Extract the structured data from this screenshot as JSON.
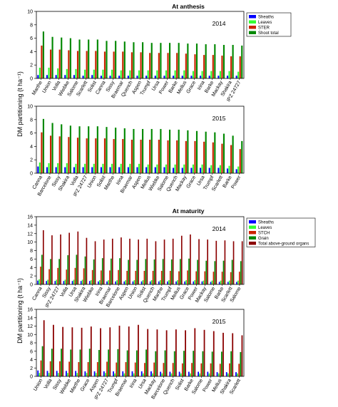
{
  "figure": {
    "section_titles": [
      "At anthesis",
      "At maturity"
    ],
    "ylabel": "DM partitioning (t ha⁻¹)"
  },
  "chart_data": [
    {
      "type": "bar",
      "title": "At anthesis",
      "year_label": "2014",
      "ylabel": "DM partitioning (t ha⁻¹)",
      "ylim": [
        0,
        10
      ],
      "yticks": [
        0,
        2,
        4,
        6,
        8,
        10
      ],
      "legend_position": "top-right",
      "categories": [
        "Marthe",
        "Union",
        "Volla",
        "Wiebke",
        "Salome",
        "Scarlett",
        "Solist",
        "Canna",
        "Sissy",
        "Braemar",
        "Quench",
        "Aspen",
        "Trumpf",
        "Ursa",
        "Power",
        "Barke",
        "Mellus",
        "Grace",
        "Irina",
        "Barke",
        "Mackay",
        "Shakira",
        "IPZ 24727"
      ],
      "series": [
        {
          "name": "Sheaths",
          "color": "#0000ff",
          "values": [
            0.5,
            0.5,
            0.5,
            0.5,
            0.5,
            0.4,
            0.5,
            0.4,
            0.4,
            0.4,
            0.4,
            0.4,
            0.4,
            0.4,
            0.4,
            0.4,
            0.4,
            0.4,
            0.4,
            0.4,
            0.4,
            0.4,
            0.4
          ]
        },
        {
          "name": "Leaves",
          "color": "#33ff33",
          "values": [
            1.6,
            1.6,
            1.5,
            1.4,
            1.4,
            1.3,
            1.3,
            1.3,
            1.3,
            1.2,
            1.2,
            1.2,
            1.2,
            1.2,
            1.2,
            1.2,
            1.2,
            1.1,
            1.1,
            1.1,
            1.1,
            1.1,
            1.0
          ]
        },
        {
          "name": "STER",
          "color": "#cc2200",
          "values": [
            4.9,
            4.3,
            4.3,
            4.2,
            4.1,
            4.1,
            4.1,
            4.0,
            4.0,
            4.0,
            3.9,
            3.9,
            3.8,
            3.8,
            3.8,
            3.8,
            3.7,
            3.6,
            3.5,
            3.5,
            3.4,
            3.3,
            3.3
          ]
        },
        {
          "name": "Shoot total",
          "color": "#008800",
          "values": [
            7.0,
            6.2,
            6.1,
            6.0,
            5.8,
            5.8,
            5.8,
            5.6,
            5.6,
            5.5,
            5.4,
            5.4,
            5.3,
            5.3,
            5.3,
            5.3,
            5.2,
            5.2,
            5.1,
            5.1,
            5.0,
            5.0,
            4.9
          ]
        }
      ]
    },
    {
      "type": "bar",
      "title": "",
      "year_label": "2015",
      "ylabel": "DM partitioning (t ha⁻¹)",
      "ylim": [
        0,
        10
      ],
      "yticks": [
        0,
        2,
        4,
        6,
        8,
        10
      ],
      "categories": [
        "Canna",
        "Barcelone",
        "Sissy",
        "Shakira",
        "Volla",
        "IPZ 24727",
        "Union",
        "Solist",
        "Marthe",
        "Irina",
        "Braemar",
        "Aspen",
        "Mellus",
        "Wiebke",
        "Salome",
        "Quench",
        "Mackay",
        "Grace",
        "Ursa",
        "Trumpf",
        "Scarlett",
        "Barke",
        "Power"
      ],
      "series": [
        {
          "name": "Sheaths",
          "color": "#0000ff",
          "values": [
            1.0,
            0.9,
            0.9,
            0.9,
            0.9,
            0.9,
            0.9,
            0.9,
            0.9,
            0.9,
            0.9,
            0.9,
            0.9,
            0.9,
            0.9,
            0.8,
            0.8,
            0.8,
            0.8,
            0.8,
            0.8,
            0.7,
            0.6
          ]
        },
        {
          "name": "Leaves",
          "color": "#33ff33",
          "values": [
            1.6,
            1.5,
            1.5,
            1.5,
            1.4,
            1.4,
            1.4,
            1.4,
            1.4,
            1.4,
            1.4,
            1.4,
            1.3,
            1.3,
            1.3,
            1.3,
            1.3,
            1.3,
            1.3,
            1.2,
            1.2,
            1.1,
            1.0
          ]
        },
        {
          "name": "STER",
          "color": "#cc2200",
          "values": [
            6.1,
            5.6,
            5.5,
            5.4,
            5.3,
            5.2,
            5.2,
            5.2,
            5.1,
            5.1,
            5.0,
            5.0,
            5.0,
            5.0,
            4.9,
            4.9,
            4.8,
            4.8,
            4.7,
            4.6,
            4.4,
            4.2,
            3.6
          ]
        },
        {
          "name": "Shoot total",
          "color": "#008800",
          "values": [
            8.1,
            7.5,
            7.3,
            7.1,
            7.0,
            7.0,
            7.0,
            6.9,
            6.8,
            6.7,
            6.6,
            6.6,
            6.6,
            6.6,
            6.5,
            6.5,
            6.4,
            6.3,
            6.2,
            6.1,
            5.9,
            5.6,
            4.8
          ]
        }
      ]
    },
    {
      "type": "bar",
      "title": "At maturity",
      "year_label": "2014",
      "ylabel": "DM partitioning (t ha⁻¹)",
      "ylim": [
        0,
        16
      ],
      "yticks": [
        0,
        2,
        4,
        6,
        8,
        10,
        12,
        14,
        16
      ],
      "legend_position": "top-right",
      "categories": [
        "Canna",
        "Sissy",
        "IPZ 24727",
        "Volla",
        "Ursa",
        "Shakira",
        "Wiebke",
        "Irina",
        "Braemar",
        "Barcelone",
        "Aspen",
        "Union",
        "Solist",
        "Quench",
        "Marthe",
        "Trumpf",
        "Mellus",
        "Grace",
        "Power",
        "Mackay",
        "Salome",
        "Barke",
        "Scarlett",
        "Salome"
      ],
      "series": [
        {
          "name": "Sheaths",
          "color": "#0000ff",
          "values": [
            0.9,
            0.8,
            0.8,
            0.8,
            0.8,
            0.8,
            0.8,
            0.7,
            0.7,
            0.7,
            0.7,
            0.7,
            0.7,
            0.7,
            0.7,
            0.7,
            0.7,
            0.7,
            0.7,
            0.7,
            0.6,
            0.6,
            0.6,
            0.6
          ]
        },
        {
          "name": "Leaves",
          "color": "#33ff33",
          "values": [
            1.2,
            1.1,
            1.1,
            1.1,
            1.1,
            1.1,
            1.0,
            1.0,
            1.0,
            1.0,
            1.0,
            1.0,
            1.0,
            1.0,
            1.0,
            1.0,
            1.0,
            1.0,
            1.0,
            0.9,
            0.9,
            0.9,
            0.9,
            0.9
          ]
        },
        {
          "name": "STCH",
          "color": "#cc2200",
          "values": [
            4.2,
            3.6,
            3.9,
            3.5,
            3.9,
            3.8,
            3.4,
            3.3,
            3.3,
            3.4,
            3.2,
            3.2,
            3.2,
            3.2,
            3.2,
            3.2,
            3.1,
            3.3,
            3.1,
            3.1,
            3.0,
            3.0,
            2.9,
            3.0
          ]
        },
        {
          "name": "Grain",
          "color": "#008800",
          "values": [
            7.0,
            6.0,
            6.0,
            6.9,
            7.0,
            6.6,
            5.9,
            6.2,
            6.1,
            6.2,
            5.8,
            5.8,
            6.0,
            5.9,
            6.0,
            5.9,
            6.0,
            6.1,
            5.8,
            5.6,
            5.5,
            5.6,
            5.8,
            5.5
          ]
        },
        {
          "name": "Total above-ground organs",
          "color": "#8b0000",
          "values": [
            12.8,
            11.6,
            11.8,
            12.2,
            12.5,
            11.0,
            10.2,
            10.6,
            10.8,
            11.1,
            10.8,
            10.6,
            10.8,
            10.2,
            10.6,
            10.8,
            11.5,
            11.8,
            10.7,
            10.6,
            10.3,
            10.4,
            10.2,
            10.2
          ]
        }
      ]
    },
    {
      "type": "bar",
      "title": "",
      "year_label": "2015",
      "ylabel": "DM partitioning (t ha⁻¹)",
      "ylim": [
        0,
        16
      ],
      "yticks": [
        0,
        2,
        4,
        6,
        8,
        10,
        12,
        14,
        16
      ],
      "categories": [
        "Union",
        "Volla",
        "Sissy",
        "Wiebke",
        "Marthe",
        "Grace",
        "Aspen",
        "IPZ 24727",
        "Trumpf",
        "Braemar",
        "Irina",
        "Ursa",
        "Mackay",
        "Barcelone",
        "Quench",
        "Solist",
        "Barke",
        "Salome",
        "Power",
        "Mellus",
        "Shakira",
        "Scarlett"
      ],
      "series": [
        {
          "name": "Sheaths",
          "color": "#0000ff",
          "values": [
            1.4,
            1.3,
            1.3,
            1.3,
            1.3,
            1.2,
            1.2,
            1.2,
            1.2,
            1.2,
            1.2,
            1.2,
            1.2,
            1.1,
            1.1,
            1.1,
            1.1,
            1.1,
            1.1,
            1.0,
            1.0,
            1.0
          ]
        },
        {
          "name": "Leaves",
          "color": "#33ff33",
          "values": [
            0.8,
            0.8,
            0.8,
            0.8,
            0.8,
            0.8,
            0.8,
            0.8,
            0.7,
            0.7,
            0.7,
            0.7,
            0.7,
            0.7,
            0.7,
            0.7,
            0.7,
            0.7,
            0.7,
            0.7,
            0.7,
            0.7
          ]
        },
        {
          "name": "STCH",
          "color": "#cc2200",
          "values": [
            3.8,
            3.6,
            3.6,
            3.5,
            3.4,
            3.4,
            3.4,
            3.5,
            3.3,
            3.4,
            3.3,
            3.2,
            3.3,
            3.2,
            3.2,
            3.1,
            3.2,
            3.1,
            3.1,
            3.0,
            3.1,
            3.0
          ]
        },
        {
          "name": "Grain",
          "color": "#008800",
          "values": [
            7.2,
            6.6,
            6.6,
            6.4,
            6.4,
            6.6,
            6.3,
            6.4,
            6.5,
            6.2,
            6.2,
            6.4,
            6.0,
            6.2,
            6.0,
            6.1,
            6.1,
            6.0,
            5.9,
            5.9,
            6.0,
            5.8
          ]
        },
        {
          "name": "Total above-ground organs",
          "color": "#8b0000",
          "values": [
            13.4,
            12.3,
            11.8,
            11.7,
            11.6,
            11.9,
            11.5,
            11.7,
            12.1,
            11.9,
            12.3,
            11.3,
            11.2,
            11.0,
            11.2,
            11.0,
            11.5,
            11.1,
            10.8,
            10.4,
            10.3,
            9.8
          ]
        }
      ]
    }
  ]
}
